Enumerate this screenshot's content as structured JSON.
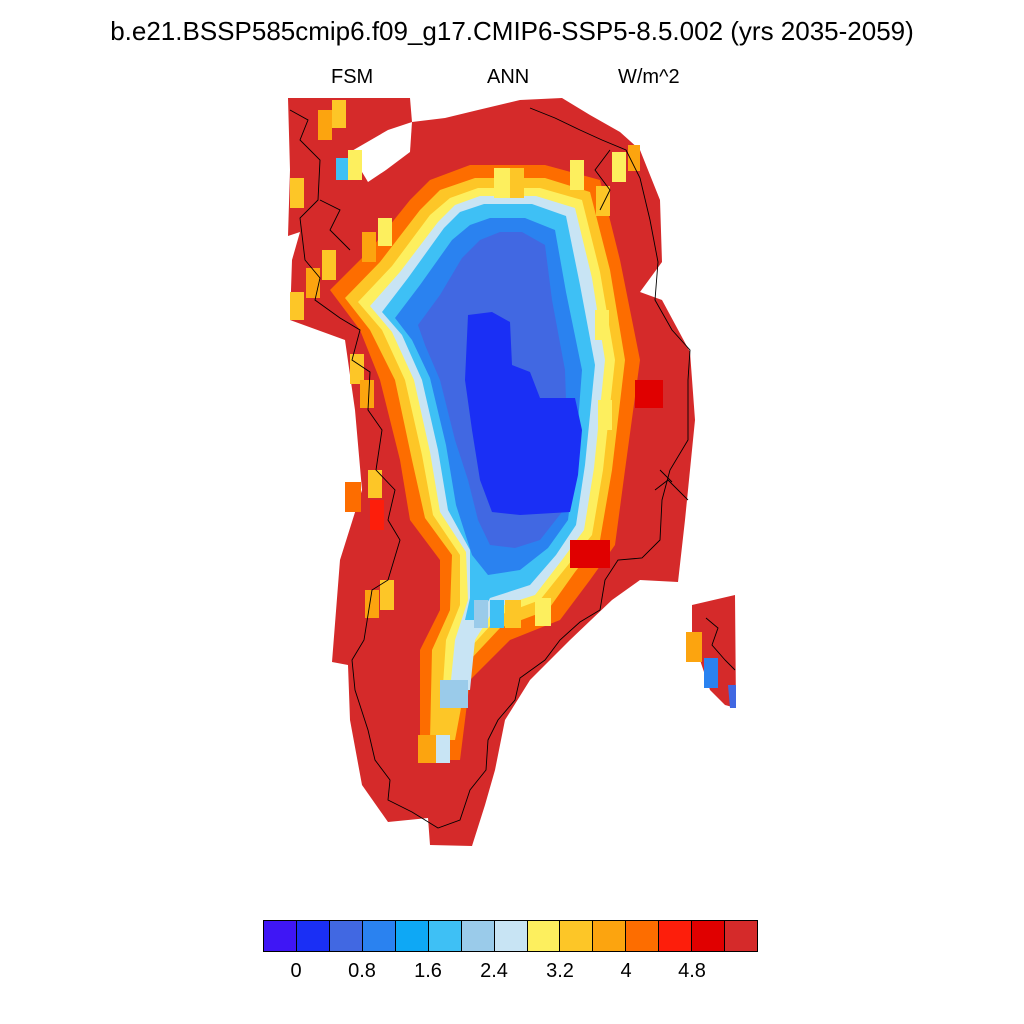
{
  "title": "b.e21.BSSP585cmip6.f09_g17.CMIP6-SSP5-8.5.002 (yrs 2035-2059)",
  "subtitle": {
    "left": "FSM",
    "center": "ANN",
    "right": "W/m^2"
  },
  "colorbar": {
    "colors": [
      "#3f16f5",
      "#1a2ff5",
      "#4168e2",
      "#2a82f0",
      "#0ea8f5",
      "#3ec0f5",
      "#9acbea",
      "#c8e4f4",
      "#fdef5e",
      "#fdc627",
      "#fca40f",
      "#fd6d00",
      "#fd1e0b",
      "#e00000",
      "#d52a2a"
    ],
    "tick_labels": [
      "0",
      "0.8",
      "1.6",
      "2.4",
      "3.2",
      "4",
      "4.8"
    ]
  },
  "map": {
    "region": "Greenland",
    "colors": {
      "max": "#d52a2a",
      "low": "#1a2ff5",
      "coast": "#000000"
    }
  }
}
